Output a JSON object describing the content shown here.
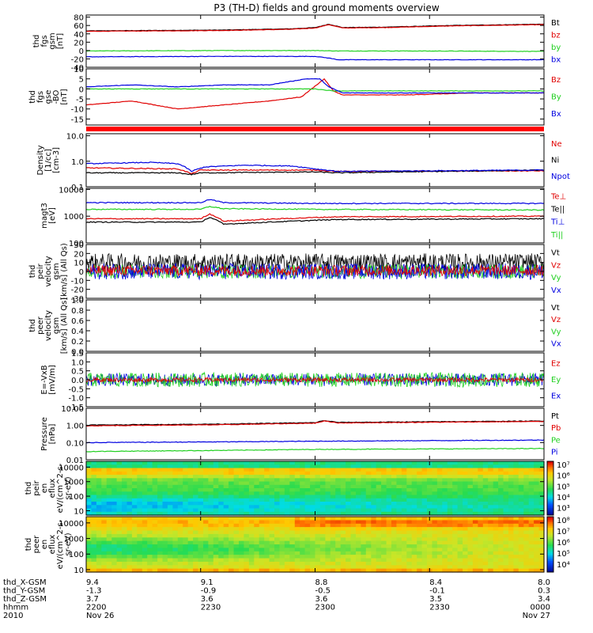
{
  "title": "P3 (TH-D) fields and ground moments overview",
  "colors": {
    "black": "#000000",
    "red": "#e00000",
    "green": "#20d020",
    "blue": "#0000e0"
  },
  "chart_data": [
    {
      "id": "fgs_gsm",
      "type": "line",
      "ylabel": [
        "thd",
        "fgs",
        "gsm",
        "[nT]"
      ],
      "yticks": [
        "80",
        "60",
        "40",
        "20",
        "0",
        "-20",
        "-40"
      ],
      "ylim": [
        -40,
        85
      ],
      "legend": [
        {
          "label": "Bt",
          "color": "black"
        },
        {
          "label": "bz",
          "color": "red"
        },
        {
          "label": "by",
          "color": "green"
        },
        {
          "label": "bx",
          "color": "blue"
        }
      ],
      "series": [
        {
          "name": "Bt",
          "color": "black",
          "x": [
            0,
            0.3,
            0.45,
            0.5,
            0.53,
            0.56,
            0.65,
            0.8,
            1.0
          ],
          "y": [
            47,
            49,
            52,
            55,
            63,
            55,
            56,
            60,
            63
          ]
        },
        {
          "name": "bz",
          "color": "red",
          "x": [
            0,
            0.3,
            0.45,
            0.5,
            0.53,
            0.56,
            0.65,
            0.8,
            1.0
          ],
          "y": [
            46,
            48,
            51,
            54,
            62,
            54,
            55,
            59,
            62
          ]
        },
        {
          "name": "by",
          "color": "green",
          "x": [
            0,
            0.3,
            0.5,
            0.55,
            0.7,
            1.0
          ],
          "y": [
            -1,
            0,
            0,
            -1,
            -1,
            -2
          ]
        },
        {
          "name": "bx",
          "color": "blue",
          "x": [
            0,
            0.3,
            0.5,
            0.53,
            0.55,
            0.7,
            1.0
          ],
          "y": [
            -15,
            -14,
            -14,
            -18,
            -22,
            -22,
            -22
          ]
        }
      ]
    },
    {
      "id": "fgs_gse",
      "type": "line",
      "ylabel": [
        "thd",
        "fgs",
        "gse",
        "-BO",
        "[nT]"
      ],
      "yticks": [
        "10",
        "5",
        "0",
        "-5",
        "-10",
        "-15"
      ],
      "ylim": [
        -18,
        10
      ],
      "legend": [
        {
          "label": "Bz",
          "color": "red"
        },
        {
          "label": "By",
          "color": "green"
        },
        {
          "label": "Bx",
          "color": "blue"
        }
      ],
      "series": [
        {
          "name": "Bz",
          "color": "red",
          "x": [
            0,
            0.1,
            0.2,
            0.3,
            0.4,
            0.47,
            0.52,
            0.54,
            0.56,
            0.62,
            0.7,
            0.85,
            1.0
          ],
          "y": [
            -8,
            -6,
            -10,
            -8,
            -6,
            -4,
            5,
            -1,
            -3,
            -3,
            -3,
            -2,
            -2
          ]
        },
        {
          "name": "By",
          "color": "green",
          "x": [
            0,
            0.2,
            0.4,
            0.5,
            0.54,
            0.6,
            0.75,
            1.0
          ],
          "y": [
            0,
            0,
            0,
            0,
            -1,
            -1,
            -1,
            -1
          ]
        },
        {
          "name": "Bx",
          "color": "blue",
          "x": [
            0,
            0.1,
            0.2,
            0.3,
            0.4,
            0.48,
            0.51,
            0.53,
            0.56,
            0.65,
            0.8,
            1.0
          ],
          "y": [
            1,
            2,
            1,
            2,
            2,
            5,
            5,
            1,
            -2,
            -2,
            -2,
            -2
          ]
        }
      ]
    },
    {
      "id": "density",
      "type": "line",
      "log": true,
      "ylabel": [
        "Density",
        "[1/cc]",
        "[cm-3]"
      ],
      "yticks": [
        "10.0",
        "1.0",
        "0.1"
      ],
      "ylim": [
        0.1,
        12
      ],
      "legend": [
        {
          "label": "Ne",
          "color": "red"
        },
        {
          "label": "Ni",
          "color": "black"
        },
        {
          "label": "Npot",
          "color": "blue"
        }
      ],
      "series": [
        {
          "name": "Ne",
          "color": "red",
          "x": [
            0,
            0.2,
            0.23,
            0.25,
            0.3,
            0.5,
            0.55,
            1.0
          ],
          "y": [
            0.55,
            0.5,
            0.32,
            0.45,
            0.45,
            0.45,
            0.4,
            0.42
          ]
        },
        {
          "name": "Ni",
          "color": "black",
          "x": [
            0,
            0.2,
            0.23,
            0.25,
            0.5,
            0.55,
            1.0
          ],
          "y": [
            0.35,
            0.35,
            0.3,
            0.35,
            0.38,
            0.35,
            0.45
          ]
        },
        {
          "name": "Npot",
          "color": "blue",
          "x": [
            0,
            0.14,
            0.2,
            0.23,
            0.26,
            0.35,
            0.45,
            0.5,
            0.55,
            1.0
          ],
          "y": [
            0.8,
            0.9,
            0.8,
            0.4,
            0.6,
            0.7,
            0.65,
            0.5,
            0.4,
            0.45
          ]
        }
      ]
    },
    {
      "id": "temperature",
      "type": "line",
      "log": true,
      "ylabel": [
        "magt3",
        "[eV]"
      ],
      "yticks": [
        "10000",
        "1000",
        "100"
      ],
      "ylim": [
        100,
        11000
      ],
      "legend": [
        {
          "label": "Te⊥",
          "color": "red"
        },
        {
          "label": "Te||",
          "color": "black"
        },
        {
          "label": "Ti⊥",
          "color": "blue"
        },
        {
          "label": "Ti||",
          "color": "green"
        }
      ],
      "series": [
        {
          "name": "Ti⊥",
          "color": "blue",
          "x": [
            0,
            0.25,
            0.27,
            0.3,
            0.5,
            1.0
          ],
          "y": [
            3200,
            3200,
            4200,
            3200,
            3000,
            3000
          ]
        },
        {
          "name": "Ti||",
          "color": "green",
          "x": [
            0,
            0.25,
            0.27,
            0.3,
            0.5,
            1.0
          ],
          "y": [
            1800,
            1800,
            2300,
            1900,
            1800,
            1700
          ]
        },
        {
          "name": "Te⊥",
          "color": "red",
          "x": [
            0,
            0.25,
            0.27,
            0.3,
            0.55,
            1.0
          ],
          "y": [
            800,
            800,
            1200,
            650,
            950,
            1000
          ]
        },
        {
          "name": "Te||",
          "color": "black",
          "x": [
            0,
            0.25,
            0.27,
            0.3,
            0.55,
            1.0
          ],
          "y": [
            600,
            600,
            900,
            500,
            750,
            800
          ]
        }
      ]
    },
    {
      "id": "peir_velocity",
      "type": "line",
      "ylabel": [
        "thd",
        "peir",
        "velocity",
        "gsm",
        "[km/s] (All Qs)"
      ],
      "yticks": [
        "30",
        "20",
        "10",
        "0",
        "-10",
        "-20",
        "-30"
      ],
      "ylim": [
        -30,
        30
      ],
      "legend": [
        {
          "label": "Vt",
          "color": "black"
        },
        {
          "label": "Vz",
          "color": "red"
        },
        {
          "label": "Vy",
          "color": "green"
        },
        {
          "label": "Vx",
          "color": "blue"
        }
      ],
      "noise": [
        {
          "name": "Vt",
          "color": "black",
          "mean": 10,
          "amp": 10
        },
        {
          "name": "Vy",
          "color": "green",
          "mean": 0,
          "amp": 8
        },
        {
          "name": "Vx",
          "color": "blue",
          "mean": 0,
          "amp": 9
        },
        {
          "name": "Vz",
          "color": "red",
          "mean": 1,
          "amp": 6
        }
      ]
    },
    {
      "id": "peer_velocity",
      "type": "line",
      "ylabel": [
        "thd",
        "peer",
        "velocity",
        "gsm",
        "[km/s] (All Qs)"
      ],
      "yticks": [
        "1.0",
        "0.8",
        "0.6",
        "0.4",
        "0.2",
        "0.0"
      ],
      "ylim": [
        0,
        1.0
      ],
      "legend": [
        {
          "label": "Vt",
          "color": "black"
        },
        {
          "label": "Vz",
          "color": "red"
        },
        {
          "label": "Vy",
          "color": "green"
        },
        {
          "label": "Vx",
          "color": "blue"
        }
      ],
      "series": []
    },
    {
      "id": "efield",
      "type": "line",
      "ylabel": [
        "E=-VxB",
        "[mV/m]"
      ],
      "yticks": [
        "1.5",
        "1.0",
        "0.5",
        "0.0",
        "-0.5",
        "-1.0",
        "-1.5"
      ],
      "ylim": [
        -1.5,
        1.5
      ],
      "legend": [
        {
          "label": "Ez",
          "color": "red"
        },
        {
          "label": "Ey",
          "color": "green"
        },
        {
          "label": "Ex",
          "color": "blue"
        }
      ],
      "noise": [
        {
          "name": "Ex",
          "color": "blue",
          "mean": 0,
          "amp": 0.35
        },
        {
          "name": "Ey",
          "color": "green",
          "mean": 0,
          "amp": 0.4
        },
        {
          "name": "Ez",
          "color": "red",
          "mean": 0,
          "amp": 0.12
        }
      ]
    },
    {
      "id": "pressure",
      "type": "line",
      "log": true,
      "ylabel": [
        "Pressure",
        "[nPa]"
      ],
      "yticks": [
        "10.00",
        "1.00",
        "0.10",
        "0.01"
      ],
      "ylim": [
        0.01,
        10
      ],
      "legend": [
        {
          "label": "Pt",
          "color": "black"
        },
        {
          "label": "Pb",
          "color": "red"
        },
        {
          "label": "Pe",
          "color": "green"
        },
        {
          "label": "Pi",
          "color": "blue"
        }
      ],
      "series": [
        {
          "name": "Pt",
          "color": "black",
          "x": [
            0,
            0.3,
            0.5,
            0.52,
            0.55,
            0.7,
            1.0
          ],
          "y": [
            1.05,
            1.2,
            1.45,
            1.9,
            1.5,
            1.6,
            1.8
          ]
        },
        {
          "name": "Pb",
          "color": "red",
          "x": [
            0,
            0.3,
            0.5,
            0.52,
            0.55,
            0.7,
            1.0
          ],
          "y": [
            0.95,
            1.1,
            1.35,
            1.8,
            1.4,
            1.5,
            1.7
          ]
        },
        {
          "name": "Pi",
          "color": "blue",
          "x": [
            0,
            0.3,
            0.5,
            1.0
          ],
          "y": [
            0.1,
            0.11,
            0.12,
            0.14
          ]
        },
        {
          "name": "Pe",
          "color": "green",
          "x": [
            0,
            0.3,
            0.5,
            1.0
          ],
          "y": [
            0.03,
            0.035,
            0.04,
            0.045
          ]
        }
      ]
    },
    {
      "id": "peir_spec",
      "type": "heatmap",
      "log": true,
      "ylabel": [
        "thd",
        "peir",
        "en",
        "eflux",
        "eV/(cm^2-s-",
        "sr-eV)"
      ],
      "yticks": [
        "10000",
        "1000",
        "100",
        "10"
      ],
      "ylim": [
        5,
        25000
      ],
      "colorbar": {
        "ticks": [
          "10⁷",
          "10⁶",
          "10⁵",
          "10⁴",
          "10³"
        ]
      }
    },
    {
      "id": "peer_spec",
      "type": "heatmap",
      "log": true,
      "ylabel": [
        "thd",
        "peer",
        "en",
        "eflux",
        "eV/(cm^2-s-",
        "sr-eV)"
      ],
      "yticks": [
        "10000",
        "1000",
        "100",
        "10"
      ],
      "ylim": [
        7,
        25000
      ],
      "colorbar": {
        "ticks": [
          "10⁸",
          "10⁷",
          "10⁶",
          "10⁵",
          "10⁴"
        ]
      }
    }
  ],
  "xaxis": {
    "rows": [
      {
        "label": "thd_X-GSM",
        "values": [
          "9.4",
          "9.1",
          "8.8",
          "8.4",
          "8.0"
        ]
      },
      {
        "label": "thd_Y-GSM",
        "values": [
          "-1.3",
          "-0.9",
          "-0.5",
          "-0.1",
          "0.3"
        ]
      },
      {
        "label": "thd_Z-GSM",
        "values": [
          "3.7",
          "3.6",
          "3.6",
          "3.5",
          "3.4"
        ]
      },
      {
        "label": "hhmm",
        "values": [
          "2200",
          "2230",
          "2300",
          "2330",
          "0000"
        ]
      },
      {
        "label": "2010",
        "values": [
          "Nov 26",
          "",
          "",
          "",
          "Nov 27"
        ]
      }
    ]
  }
}
